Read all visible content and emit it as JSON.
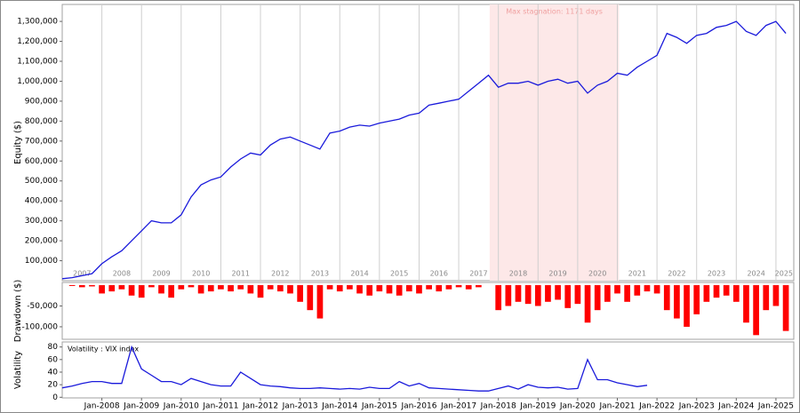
{
  "chart_data": [
    {
      "type": "line",
      "y_label": "Equity ($)",
      "color": "#1a1adb",
      "xlim": [
        2007,
        2025.45
      ],
      "ylim": [
        0,
        1385000
      ],
      "yticks": [
        {
          "value": 100000,
          "label": "100,000"
        },
        {
          "value": 200000,
          "label": "200,000"
        },
        {
          "value": 300000,
          "label": "300,000"
        },
        {
          "value": 400000,
          "label": "400,000"
        },
        {
          "value": 500000,
          "label": "500,000"
        },
        {
          "value": 600000,
          "label": "600,000"
        },
        {
          "value": 700000,
          "label": "700,000"
        },
        {
          "value": 800000,
          "label": "800,000"
        },
        {
          "value": 900000,
          "label": "900,000"
        },
        {
          "value": 1000000,
          "label": "1,000,000"
        },
        {
          "value": 1100000,
          "label": "1,100,000"
        },
        {
          "value": 1200000,
          "label": "1,200,000"
        },
        {
          "value": 1300000,
          "label": "1,300,000"
        }
      ],
      "xticks": [
        {
          "value": 2007.5,
          "label": "2007"
        },
        {
          "value": 2008.5,
          "label": "2008"
        },
        {
          "value": 2009.5,
          "label": "2009"
        },
        {
          "value": 2010.5,
          "label": "2010"
        },
        {
          "value": 2011.5,
          "label": "2011"
        },
        {
          "value": 2012.5,
          "label": "2012"
        },
        {
          "value": 2013.5,
          "label": "2013"
        },
        {
          "value": 2014.5,
          "label": "2014"
        },
        {
          "value": 2015.5,
          "label": "2015"
        },
        {
          "value": 2016.5,
          "label": "2016"
        },
        {
          "value": 2017.5,
          "label": "2017"
        },
        {
          "value": 2018.5,
          "label": "2018"
        },
        {
          "value": 2019.5,
          "label": "2019"
        },
        {
          "value": 2020.5,
          "label": "2020"
        },
        {
          "value": 2021.5,
          "label": "2021"
        },
        {
          "value": 2022.5,
          "label": "2022"
        },
        {
          "value": 2023.5,
          "label": "2023"
        },
        {
          "value": 2024.5,
          "label": "2024"
        },
        {
          "value": 2025.2,
          "label": "2025"
        }
      ],
      "stagnation": {
        "label": "Max stagnation: 1171 days",
        "start": 2017.78,
        "end": 2021.04
      },
      "x": [
        2007,
        2007.25,
        2007.5,
        2007.75,
        2008,
        2008.25,
        2008.5,
        2008.75,
        2009,
        2009.25,
        2009.5,
        2009.75,
        2010,
        2010.25,
        2010.5,
        2010.75,
        2011,
        2011.25,
        2011.5,
        2011.75,
        2012,
        2012.25,
        2012.5,
        2012.75,
        2013,
        2013.25,
        2013.5,
        2013.75,
        2014,
        2014.25,
        2014.5,
        2014.75,
        2015,
        2015.25,
        2015.5,
        2015.75,
        2016,
        2016.25,
        2016.5,
        2016.75,
        2017,
        2017.25,
        2017.5,
        2017.75,
        2018,
        2018.25,
        2018.5,
        2018.75,
        2019,
        2019.25,
        2019.5,
        2019.75,
        2020,
        2020.25,
        2020.5,
        2020.75,
        2021,
        2021.25,
        2021.5,
        2021.75,
        2022,
        2022.25,
        2022.5,
        2022.75,
        2023,
        2023.25,
        2023.5,
        2023.75,
        2024,
        2024.25,
        2024.5,
        2024.75,
        2025,
        2025.25
      ],
      "values": [
        10000,
        15000,
        25000,
        35000,
        85000,
        120000,
        150000,
        200000,
        250000,
        300000,
        290000,
        290000,
        330000,
        420000,
        480000,
        505000,
        520000,
        570000,
        610000,
        640000,
        630000,
        680000,
        710000,
        720000,
        700000,
        680000,
        660000,
        740000,
        750000,
        770000,
        780000,
        775000,
        790000,
        800000,
        810000,
        830000,
        840000,
        880000,
        890000,
        900000,
        910000,
        950000,
        990000,
        1030000,
        970000,
        990000,
        990000,
        1000000,
        980000,
        1000000,
        1010000,
        990000,
        1000000,
        940000,
        980000,
        1000000,
        1040000,
        1030000,
        1070000,
        1100000,
        1130000,
        1240000,
        1220000,
        1190000,
        1230000,
        1240000,
        1270000,
        1280000,
        1300000,
        1250000,
        1230000,
        1280000,
        1300000,
        1240000
      ]
    },
    {
      "type": "bar",
      "y_label": "Drawdown ($)",
      "color": "#ff0000",
      "xlim": [
        2007,
        2025.45
      ],
      "ylim": [
        -130000,
        6500
      ],
      "yticks": [
        {
          "value": -50000,
          "label": "-50,000"
        },
        {
          "value": -100000,
          "label": "-100,000"
        }
      ],
      "x": [
        2007,
        2007.25,
        2007.5,
        2007.75,
        2008,
        2008.25,
        2008.5,
        2008.75,
        2009,
        2009.25,
        2009.5,
        2009.75,
        2010,
        2010.25,
        2010.5,
        2010.75,
        2011,
        2011.25,
        2011.5,
        2011.75,
        2012,
        2012.25,
        2012.5,
        2012.75,
        2013,
        2013.25,
        2013.5,
        2013.75,
        2014,
        2014.25,
        2014.5,
        2014.75,
        2015,
        2015.25,
        2015.5,
        2015.75,
        2016,
        2016.25,
        2016.5,
        2016.75,
        2017,
        2017.25,
        2017.5,
        2017.75,
        2018,
        2018.25,
        2018.5,
        2018.75,
        2019,
        2019.25,
        2019.5,
        2019.75,
        2020,
        2020.25,
        2020.5,
        2020.75,
        2021,
        2021.25,
        2021.5,
        2021.75,
        2022,
        2022.25,
        2022.5,
        2022.75,
        2023,
        2023.25,
        2023.5,
        2023.75,
        2024,
        2024.25,
        2024.5,
        2024.75,
        2025,
        2025.25
      ],
      "values": [
        0,
        -2000,
        -5000,
        -3000,
        -20000,
        -15000,
        -10000,
        -25000,
        -30000,
        -5000,
        -20000,
        -30000,
        -10000,
        -5000,
        -20000,
        -15000,
        -10000,
        -15000,
        -10000,
        -20000,
        -30000,
        -10000,
        -15000,
        -20000,
        -40000,
        -60000,
        -80000,
        -10000,
        -15000,
        -10000,
        -20000,
        -25000,
        -15000,
        -20000,
        -25000,
        -15000,
        -20000,
        -10000,
        -15000,
        -10000,
        -5000,
        -10000,
        -5000,
        0,
        -60000,
        -50000,
        -40000,
        -45000,
        -50000,
        -40000,
        -35000,
        -55000,
        -45000,
        -90000,
        -60000,
        -40000,
        -20000,
        -40000,
        -25000,
        -15000,
        -20000,
        -60000,
        -80000,
        -100000,
        -70000,
        -40000,
        -30000,
        -25000,
        -40000,
        -90000,
        -120000,
        -60000,
        -50000,
        -110000
      ]
    },
    {
      "type": "line",
      "y_label": "Volatility",
      "annotation": "Volatility : VIX index",
      "color": "#1a1adb",
      "xlim": [
        2007,
        2025.45
      ],
      "ylim": [
        -1,
        88
      ],
      "yticks": [
        0,
        20,
        40,
        60,
        80
      ],
      "xticks": [
        {
          "value": 2008,
          "label": "Jan-2008"
        },
        {
          "value": 2009,
          "label": "Jan-2009"
        },
        {
          "value": 2010,
          "label": "Jan-2010"
        },
        {
          "value": 2011,
          "label": "Jan-2011"
        },
        {
          "value": 2012,
          "label": "Jan-2012"
        },
        {
          "value": 2013,
          "label": "Jan-2013"
        },
        {
          "value": 2014,
          "label": "Jan-2014"
        },
        {
          "value": 2015,
          "label": "Jan-2015"
        },
        {
          "value": 2016,
          "label": "Jan-2016"
        },
        {
          "value": 2017,
          "label": "Jan-2017"
        },
        {
          "value": 2018,
          "label": "Jan-2018"
        },
        {
          "value": 2019,
          "label": "Jan-2019"
        },
        {
          "value": 2020,
          "label": "Jan-2020"
        },
        {
          "value": 2021,
          "label": "Jan-2021"
        },
        {
          "value": 2022,
          "label": "Jan-2022"
        },
        {
          "value": 2023,
          "label": "Jan-2023"
        },
        {
          "value": 2024,
          "label": "Jan-2024"
        },
        {
          "value": 2025,
          "label": "Jan-2025"
        }
      ],
      "x": [
        2007,
        2007.25,
        2007.5,
        2007.75,
        2008,
        2008.25,
        2008.5,
        2008.75,
        2009,
        2009.25,
        2009.5,
        2009.75,
        2010,
        2010.25,
        2010.5,
        2010.75,
        2011,
        2011.25,
        2011.5,
        2011.75,
        2012,
        2012.25,
        2012.5,
        2012.75,
        2013,
        2013.25,
        2013.5,
        2013.75,
        2014,
        2014.25,
        2014.5,
        2014.75,
        2015,
        2015.25,
        2015.5,
        2015.75,
        2016,
        2016.25,
        2016.5,
        2016.75,
        2017,
        2017.25,
        2017.5,
        2017.75,
        2018,
        2018.25,
        2018.5,
        2018.75,
        2019,
        2019.25,
        2019.5,
        2019.75,
        2020,
        2020.25,
        2020.5,
        2020.75,
        2021,
        2021.25,
        2021.5,
        2021.75,
        2022,
        2022.25,
        2022.5,
        2022.75,
        2023,
        2023.25,
        2023.5,
        2023.75,
        2024,
        2024.25,
        2024.5,
        2024.75,
        2025,
        2025.25
      ],
      "values": [
        15,
        18,
        22,
        25,
        25,
        22,
        22,
        80,
        45,
        35,
        25,
        25,
        20,
        30,
        25,
        20,
        18,
        18,
        40,
        30,
        20,
        18,
        17,
        15,
        14,
        14,
        15,
        14,
        13,
        14,
        13,
        16,
        14,
        14,
        25,
        18,
        22,
        15,
        14,
        13,
        12,
        11,
        10,
        10,
        14,
        18,
        13,
        20,
        16,
        15,
        16,
        13,
        14,
        60,
        28,
        28,
        23,
        20,
        17,
        19,
        null,
        null,
        null,
        null,
        null,
        null,
        null,
        null,
        null,
        null,
        null,
        null,
        null,
        null
      ]
    }
  ]
}
